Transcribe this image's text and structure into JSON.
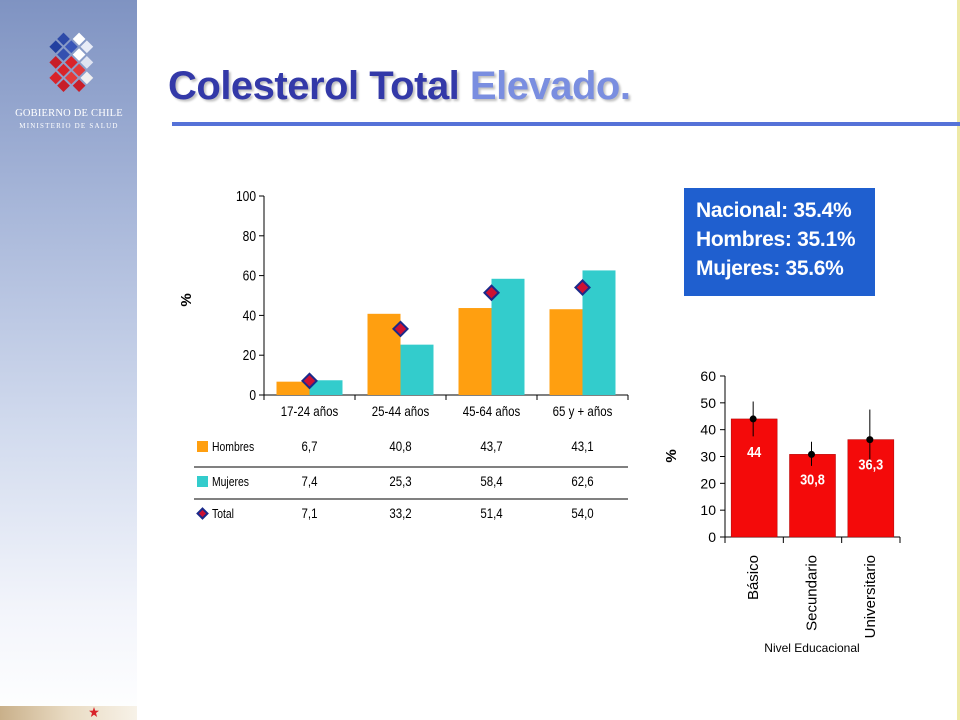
{
  "header": {
    "title_main": "Colesterol Total ",
    "title_accent": "Elevado."
  },
  "logo": {
    "name": "GOBIERNO DE CHILE",
    "ministry": "MINISTERIO DE SALUD"
  },
  "summary_box": {
    "lines": [
      "Nacional: 35.4%",
      "Hombres: 35.1%",
      "Mujeres: 35.6%"
    ]
  },
  "colors": {
    "hombres": "#ff9f10",
    "mujeres": "#33cccc",
    "total_marker": "#cc1133",
    "total_marker_border": "#1a2a8a",
    "education_bar": "#f40a0a",
    "summary_box_bg": "#1f5fcf",
    "title": "#3339a8",
    "title_accent": "#7a8ee0"
  },
  "chart_data": [
    {
      "type": "bar",
      "categories": [
        "17-24 años",
        "25-44 años",
        "45-64 años",
        "65 y + años"
      ],
      "series": [
        {
          "name": "Hombres",
          "kind": "bar",
          "values": [
            6.7,
            40.8,
            43.7,
            43.1
          ],
          "labels": [
            "6,7",
            "40,8",
            "43,7",
            "43,1"
          ]
        },
        {
          "name": "Mujeres",
          "kind": "bar",
          "values": [
            7.4,
            25.3,
            58.4,
            62.6
          ],
          "labels": [
            "7,4",
            "25,3",
            "58,4",
            "62,6"
          ]
        },
        {
          "name": "Total",
          "kind": "marker",
          "values": [
            7.1,
            33.2,
            51.4,
            54.0
          ],
          "labels": [
            "7,1",
            "33,2",
            "51,4",
            "54,0"
          ]
        }
      ],
      "ylabel": "%",
      "ylim": [
        0,
        100
      ],
      "yticks": [
        0,
        20,
        40,
        60,
        80,
        100
      ],
      "legend": "data table below chart",
      "grid": false
    },
    {
      "type": "bar",
      "categories": [
        "Básico",
        "Secundario",
        "Universitario"
      ],
      "values": [
        44,
        30.8,
        36.3
      ],
      "value_labels": [
        "44",
        "30,8",
        "36,3"
      ],
      "error_low": [
        37.5,
        26.5,
        25.0
      ],
      "error_high": [
        50.5,
        35.5,
        47.5
      ],
      "xlabel": "Nivel Educacional",
      "ylabel": "%",
      "ylim": [
        0,
        60
      ],
      "yticks": [
        0,
        10,
        20,
        30,
        40,
        50,
        60
      ],
      "grid": false
    }
  ]
}
